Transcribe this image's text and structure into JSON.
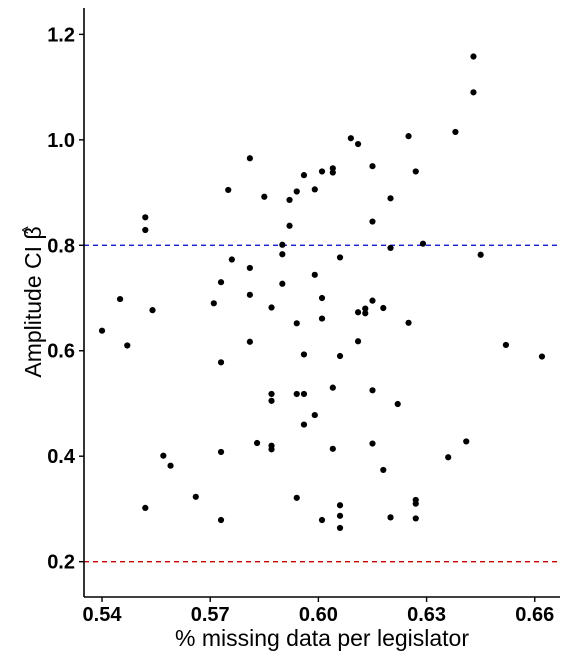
{
  "chart_data": {
    "type": "scatter",
    "title": "",
    "xlabel": "% missing data per legislator",
    "ylabel": "Amplitude CI β̂",
    "ylabel_main": "Amplitude CI ",
    "ylabel_symbol": "β",
    "ylabel_hat": "^",
    "xlim": [
      0.535,
      0.667
    ],
    "ylim": [
      0.133,
      1.25
    ],
    "x_ticks": [
      0.54,
      0.57,
      0.6,
      0.63,
      0.66
    ],
    "x_tick_labels": [
      "0.54",
      "0.57",
      "0.60",
      "0.63",
      "0.66"
    ],
    "y_ticks": [
      0.2,
      0.4,
      0.6,
      0.8,
      1.0,
      1.2
    ],
    "y_tick_labels": [
      "0.2",
      "0.4",
      "0.6",
      "0.8",
      "1.0",
      "1.2"
    ],
    "grid": false,
    "reference_lines": [
      {
        "axis": "y",
        "value": 0.8,
        "color": "#0000cc",
        "style": "dashed"
      },
      {
        "axis": "y",
        "value": 0.2,
        "color": "#cc0000",
        "style": "dashed"
      }
    ],
    "point_color": "#000000",
    "points": [
      [
        0.54,
        0.638
      ],
      [
        0.545,
        0.698
      ],
      [
        0.547,
        0.61
      ],
      [
        0.552,
        0.853
      ],
      [
        0.552,
        0.829
      ],
      [
        0.552,
        0.302
      ],
      [
        0.554,
        0.677
      ],
      [
        0.557,
        0.401
      ],
      [
        0.559,
        0.382
      ],
      [
        0.566,
        0.323
      ],
      [
        0.571,
        0.69
      ],
      [
        0.573,
        0.73
      ],
      [
        0.573,
        0.578
      ],
      [
        0.573,
        0.408
      ],
      [
        0.573,
        0.279
      ],
      [
        0.575,
        0.905
      ],
      [
        0.576,
        0.773
      ],
      [
        0.581,
        0.965
      ],
      [
        0.581,
        0.757
      ],
      [
        0.581,
        0.706
      ],
      [
        0.581,
        0.617
      ],
      [
        0.583,
        0.425
      ],
      [
        0.585,
        0.892
      ],
      [
        0.587,
        0.682
      ],
      [
        0.587,
        0.518
      ],
      [
        0.587,
        0.505
      ],
      [
        0.587,
        0.42
      ],
      [
        0.587,
        0.413
      ],
      [
        0.59,
        0.801
      ],
      [
        0.59,
        0.783
      ],
      [
        0.59,
        0.727
      ],
      [
        0.592,
        0.886
      ],
      [
        0.592,
        0.837
      ],
      [
        0.594,
        0.902
      ],
      [
        0.594,
        0.652
      ],
      [
        0.594,
        0.518
      ],
      [
        0.594,
        0.321
      ],
      [
        0.596,
        0.933
      ],
      [
        0.596,
        0.593
      ],
      [
        0.596,
        0.518
      ],
      [
        0.596,
        0.46
      ],
      [
        0.599,
        0.906
      ],
      [
        0.599,
        0.744
      ],
      [
        0.599,
        0.478
      ],
      [
        0.601,
        0.94
      ],
      [
        0.601,
        0.7
      ],
      [
        0.601,
        0.661
      ],
      [
        0.601,
        0.279
      ],
      [
        0.604,
        0.946
      ],
      [
        0.604,
        0.938
      ],
      [
        0.604,
        0.53
      ],
      [
        0.604,
        0.414
      ],
      [
        0.606,
        0.777
      ],
      [
        0.606,
        0.59
      ],
      [
        0.606,
        0.307
      ],
      [
        0.606,
        0.287
      ],
      [
        0.606,
        0.264
      ],
      [
        0.609,
        1.003
      ],
      [
        0.611,
        0.992
      ],
      [
        0.611,
        0.673
      ],
      [
        0.611,
        0.618
      ],
      [
        0.613,
        0.68
      ],
      [
        0.613,
        0.671
      ],
      [
        0.615,
        0.95
      ],
      [
        0.615,
        0.845
      ],
      [
        0.615,
        0.695
      ],
      [
        0.615,
        0.525
      ],
      [
        0.615,
        0.424
      ],
      [
        0.618,
        0.681
      ],
      [
        0.618,
        0.374
      ],
      [
        0.62,
        0.889
      ],
      [
        0.62,
        0.795
      ],
      [
        0.62,
        0.284
      ],
      [
        0.622,
        0.499
      ],
      [
        0.625,
        1.007
      ],
      [
        0.625,
        0.653
      ],
      [
        0.627,
        0.94
      ],
      [
        0.627,
        0.317
      ],
      [
        0.627,
        0.31
      ],
      [
        0.627,
        0.282
      ],
      [
        0.629,
        0.803
      ],
      [
        0.636,
        0.398
      ],
      [
        0.638,
        1.015
      ],
      [
        0.641,
        0.428
      ],
      [
        0.643,
        1.158
      ],
      [
        0.643,
        1.09
      ],
      [
        0.645,
        0.782
      ],
      [
        0.652,
        0.611
      ],
      [
        0.662,
        0.589
      ]
    ]
  }
}
